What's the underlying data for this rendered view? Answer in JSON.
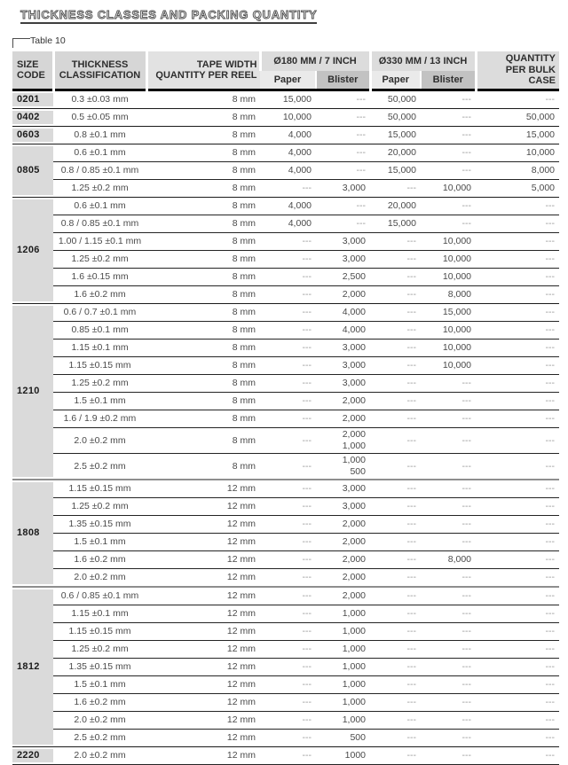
{
  "page": {
    "title": "THICKNESS CLASSES AND PACKING QUANTITY",
    "table_label": "Table 10"
  },
  "table": {
    "headers": {
      "size_code": "SIZE\nCODE",
      "thickness": "THICKNESS\nCLASSIFICATION",
      "tape_width": "TAPE WIDTH\nQUANTITY PER REEL",
      "d180": "Ø180 MM / 7 INCH",
      "d330": "Ø330 MM / 13 INCH",
      "paper": "Paper",
      "blister": "Blister",
      "bulk": "QUANTITY\nPER BULK CASE"
    },
    "groups": [
      {
        "code": "0201",
        "rows": [
          {
            "thickness": "0.3 ±0.03 mm",
            "tape": "8 mm",
            "p180": "15,000",
            "b180": "---",
            "p330": "50,000",
            "b330": "---",
            "bulk": "---"
          }
        ]
      },
      {
        "code": "0402",
        "rows": [
          {
            "thickness": "0.5 ±0.05 mm",
            "tape": "8 mm",
            "p180": "10,000",
            "b180": "---",
            "p330": "50,000",
            "b330": "---",
            "bulk": "50,000"
          }
        ]
      },
      {
        "code": "0603",
        "rows": [
          {
            "thickness": "0.8 ±0.1 mm",
            "tape": "8 mm",
            "p180": "4,000",
            "b180": "---",
            "p330": "15,000",
            "b330": "---",
            "bulk": "15,000"
          }
        ]
      },
      {
        "code": "0805",
        "rows": [
          {
            "thickness": "0.6 ±0.1 mm",
            "tape": "8 mm",
            "p180": "4,000",
            "b180": "---",
            "p330": "20,000",
            "b330": "---",
            "bulk": "10,000"
          },
          {
            "thickness": "0.8 / 0.85 ±0.1 mm",
            "tape": "8 mm",
            "p180": "4,000",
            "b180": "---",
            "p330": "15,000",
            "b330": "---",
            "bulk": "8,000"
          },
          {
            "thickness": "1.25 ±0.2 mm",
            "tape": "8 mm",
            "p180": "---",
            "b180": "3,000",
            "p330": "---",
            "b330": "10,000",
            "bulk": "5,000"
          }
        ]
      },
      {
        "code": "1206",
        "rows": [
          {
            "thickness": "0.6 ±0.1 mm",
            "tape": "8 mm",
            "p180": "4,000",
            "b180": "---",
            "p330": "20,000",
            "b330": "---",
            "bulk": "---"
          },
          {
            "thickness": "0.8 / 0.85 ±0.1 mm",
            "tape": "8 mm",
            "p180": "4,000",
            "b180": "---",
            "p330": "15,000",
            "b330": "---",
            "bulk": "---"
          },
          {
            "thickness": "1.00 / 1.15 ±0.1 mm",
            "tape": "8 mm",
            "p180": "---",
            "b180": "3,000",
            "p330": "---",
            "b330": "10,000",
            "bulk": "---"
          },
          {
            "thickness": "1.25 ±0.2 mm",
            "tape": "8 mm",
            "p180": "---",
            "b180": "3,000",
            "p330": "---",
            "b330": "10,000",
            "bulk": "---"
          },
          {
            "thickness": "1.6 ±0.15 mm",
            "tape": "8 mm",
            "p180": "---",
            "b180": "2,500",
            "p330": "---",
            "b330": "10,000",
            "bulk": "---"
          },
          {
            "thickness": "1.6 ±0.2 mm",
            "tape": "8 mm",
            "p180": "---",
            "b180": "2,000",
            "p330": "---",
            "b330": "8,000",
            "bulk": "---"
          }
        ]
      },
      {
        "code": "1210",
        "rows": [
          {
            "thickness": "0.6 / 0.7 ±0.1 mm",
            "tape": "8 mm",
            "p180": "---",
            "b180": "4,000",
            "p330": "---",
            "b330": "15,000",
            "bulk": "---"
          },
          {
            "thickness": "0.85 ±0.1 mm",
            "tape": "8 mm",
            "p180": "---",
            "b180": "4,000",
            "p330": "---",
            "b330": "10,000",
            "bulk": "---"
          },
          {
            "thickness": "1.15 ±0.1 mm",
            "tape": "8 mm",
            "p180": "---",
            "b180": "3,000",
            "p330": "---",
            "b330": "10,000",
            "bulk": "---"
          },
          {
            "thickness": "1.15 ±0.15 mm",
            "tape": "8 mm",
            "p180": "---",
            "b180": "3,000",
            "p330": "---",
            "b330": "10,000",
            "bulk": "---"
          },
          {
            "thickness": "1.25 ±0.2 mm",
            "tape": "8 mm",
            "p180": "---",
            "b180": "3,000",
            "p330": "---",
            "b330": "---",
            "bulk": "---"
          },
          {
            "thickness": "1.5 ±0.1 mm",
            "tape": "8 mm",
            "p180": "---",
            "b180": "2,000",
            "p330": "---",
            "b330": "---",
            "bulk": "---"
          },
          {
            "thickness": "1.6 / 1.9 ±0.2 mm",
            "tape": "8 mm",
            "p180": "---",
            "b180": "2,000",
            "p330": "---",
            "b330": "---",
            "bulk": "---"
          },
          {
            "thickness": "2.0 ±0.2 mm",
            "tape": "8 mm",
            "p180": "---",
            "b180": "2,000\n1,000",
            "p330": "---",
            "b330": "---",
            "bulk": "---"
          },
          {
            "thickness": "2.5 ±0.2 mm",
            "tape": "8 mm",
            "p180": "---",
            "b180": "1,000\n500",
            "p330": "---",
            "b330": "---",
            "bulk": "---"
          }
        ]
      },
      {
        "code": "1808",
        "heavy_top": true,
        "rows": [
          {
            "thickness": "1.15 ±0.15 mm",
            "tape": "12 mm",
            "p180": "---",
            "b180": "3,000",
            "p330": "---",
            "b330": "---",
            "bulk": "---"
          },
          {
            "thickness": "1.25 ±0.2 mm",
            "tape": "12 mm",
            "p180": "---",
            "b180": "3,000",
            "p330": "---",
            "b330": "---",
            "bulk": "---"
          },
          {
            "thickness": "1.35 ±0.15 mm",
            "tape": "12 mm",
            "p180": "---",
            "b180": "2,000",
            "p330": "---",
            "b330": "---",
            "bulk": "---"
          },
          {
            "thickness": "1.5 ±0.1 mm",
            "tape": "12 mm",
            "p180": "---",
            "b180": "2,000",
            "p330": "---",
            "b330": "---",
            "bulk": "---"
          },
          {
            "thickness": "1.6 ±0.2 mm",
            "tape": "12 mm",
            "p180": "---",
            "b180": "2,000",
            "p330": "---",
            "b330": "8,000",
            "bulk": "---"
          },
          {
            "thickness": "2.0 ±0.2 mm",
            "tape": "12 mm",
            "p180": "---",
            "b180": "2,000",
            "p330": "---",
            "b330": "---",
            "bulk": "---"
          }
        ]
      },
      {
        "code": "1812",
        "heavy_top": true,
        "rows": [
          {
            "thickness": "0.6 / 0.85 ±0.1 mm",
            "tape": "12 mm",
            "p180": "---",
            "b180": "2,000",
            "p330": "---",
            "b330": "---",
            "bulk": "---"
          },
          {
            "thickness": "1.15 ±0.1 mm",
            "tape": "12 mm",
            "p180": "---",
            "b180": "1,000",
            "p330": "---",
            "b330": "---",
            "bulk": "---"
          },
          {
            "thickness": "1.15 ±0.15 mm",
            "tape": "12 mm",
            "p180": "---",
            "b180": "1,000",
            "p330": "---",
            "b330": "---",
            "bulk": "---"
          },
          {
            "thickness": "1.25 ±0.2 mm",
            "tape": "12 mm",
            "p180": "---",
            "b180": "1,000",
            "p330": "---",
            "b330": "---",
            "bulk": "---"
          },
          {
            "thickness": "1.35 ±0.15 mm",
            "tape": "12 mm",
            "p180": "---",
            "b180": "1,000",
            "p330": "---",
            "b330": "---",
            "bulk": "---"
          },
          {
            "thickness": "1.5 ±0.1 mm",
            "tape": "12 mm",
            "p180": "---",
            "b180": "1,000",
            "p330": "---",
            "b330": "---",
            "bulk": "---"
          },
          {
            "thickness": "1.6 ±0.2 mm",
            "tape": "12 mm",
            "p180": "---",
            "b180": "1,000",
            "p330": "---",
            "b330": "---",
            "bulk": "---"
          },
          {
            "thickness": "2.0 ±0.2 mm",
            "tape": "12 mm",
            "p180": "---",
            "b180": "1,000",
            "p330": "---",
            "b330": "---",
            "bulk": "---"
          },
          {
            "thickness": "2.5 ±0.2 mm",
            "tape": "12 mm",
            "p180": "---",
            "b180": "500",
            "p330": "---",
            "b330": "---",
            "bulk": "---"
          }
        ]
      },
      {
        "code": "2220",
        "rows": [
          {
            "thickness": "2.0 ±0.2 mm",
            "tape": "12 mm",
            "p180": "---",
            "b180": "1000",
            "p330": "---",
            "b330": "---",
            "bulk": "---"
          }
        ]
      }
    ]
  }
}
